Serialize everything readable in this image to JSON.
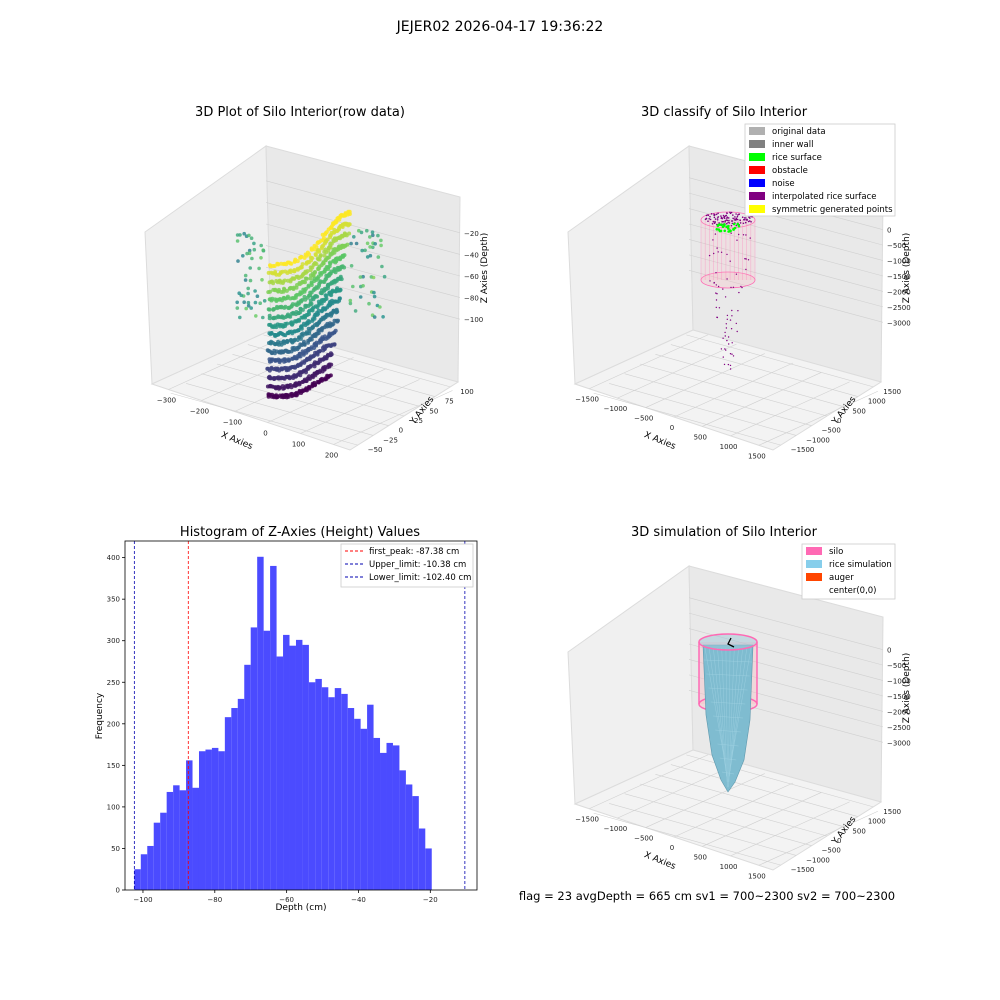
{
  "suptitle": "JEJER02 2026-04-17 19:36:22",
  "status_line": "flag = 23   avgDepth = 665 cm   sv1 = 700~2300   sv2 = 700~2300",
  "plot1": {
    "title": "3D Plot of Silo Interior(row data)",
    "xlabel": "X Axies",
    "ylabel": "Y Axies",
    "zlabel": "Z Axies (Depth)",
    "xticks": [
      "−300",
      "−200",
      "−100",
      "0",
      "100",
      "200"
    ],
    "yticks": [
      "−50",
      "−25",
      "0",
      "25",
      "50",
      "75",
      "100"
    ],
    "zticks": [
      "−100",
      "−80",
      "−60",
      "−40",
      "−20"
    ],
    "colormap": "viridis"
  },
  "plot2": {
    "title": "3D classify of Silo Interior",
    "xlabel": "X Axies",
    "ylabel": "Y Axies",
    "zlabel": "Z Axies (Depth)",
    "xticks": [
      "−1500",
      "−1000",
      "−500",
      "0",
      "500",
      "1000",
      "1500"
    ],
    "yticks": [
      "−1500",
      "−1000",
      "−500",
      "0",
      "500",
      "1000",
      "1500"
    ],
    "zticks": [
      "−3000",
      "−2500",
      "−2000",
      "−1500",
      "−1000",
      "−500",
      "0"
    ],
    "legend": [
      {
        "label": "original data",
        "color": "#b0b0b0"
      },
      {
        "label": "inner wall",
        "color": "#808080"
      },
      {
        "label": "rice surface",
        "color": "#00ff00"
      },
      {
        "label": "obstacle",
        "color": "#ff0000"
      },
      {
        "label": "noise",
        "color": "#0000ff"
      },
      {
        "label": "interpolated rice surface",
        "color": "#800080"
      },
      {
        "label": "symmetric generated points",
        "color": "#ffff00"
      }
    ]
  },
  "plot3": {
    "title": "Histogram of Z-Axies (Height) Values",
    "xlabel": "Depth (cm)",
    "ylabel": "Frequency",
    "xticks": [
      "−100",
      "−80",
      "−60",
      "−40",
      "−20"
    ],
    "yticks": [
      "0",
      "50",
      "100",
      "150",
      "200",
      "250",
      "300",
      "350",
      "400"
    ],
    "legend": [
      {
        "label": "first_peak: -87.38 cm",
        "color": "#ff0000"
      },
      {
        "label": "Upper_limit: -10.38 cm",
        "color": "#0000b0"
      },
      {
        "label": "Lower_limit: -102.40 cm",
        "color": "#0000b0"
      }
    ]
  },
  "plot4": {
    "title": "3D simulation of Silo Interior",
    "xlabel": "X Axies",
    "ylabel": "Y Axies",
    "zlabel": "Z Axies (Depth)",
    "xticks": [
      "−1500",
      "−1000",
      "−500",
      "0",
      "500",
      "1000",
      "1500"
    ],
    "yticks": [
      "−1500",
      "−1000",
      "−500",
      "0",
      "500",
      "1000",
      "1500"
    ],
    "zticks": [
      "−3000",
      "−2500",
      "−2000",
      "−1500",
      "−1000",
      "−500",
      "0"
    ],
    "legend": [
      {
        "label": "silo",
        "color": "#ff69b4"
      },
      {
        "label": "rice simulation",
        "color": "#87ceeb"
      },
      {
        "label": "auger",
        "color": "#ff4500"
      },
      {
        "label": "center(0,0)",
        "color": "#ffffff"
      }
    ]
  },
  "chart_data": [
    {
      "type": "scatter",
      "title": "3D Plot of Silo Interior(row data)",
      "note_series": "3D point cloud colored by depth (viridis)",
      "xlim": [
        -330,
        230
      ],
      "ylim": [
        -55,
        110
      ],
      "zlim": [
        -110,
        -10
      ]
    },
    {
      "type": "scatter",
      "title": "3D classify of Silo Interior",
      "xlim": [
        -1700,
        1700
      ],
      "ylim": [
        -1700,
        1700
      ],
      "zlim": [
        -3300,
        0
      ]
    },
    {
      "type": "bar",
      "title": "Histogram of Z-Axies (Height) Values",
      "xlabel": "Depth (cm)",
      "ylabel": "Frequency",
      "xlim": [
        -105,
        -7
      ],
      "ylim": [
        0,
        420
      ],
      "bin_start": -102.4,
      "bin_width": 1.8,
      "values": [
        25,
        43,
        53,
        81,
        93,
        118,
        126,
        120,
        156,
        123,
        167,
        169,
        171,
        167,
        208,
        219,
        230,
        271,
        316,
        401,
        312,
        390,
        281,
        307,
        294,
        301,
        295,
        250,
        254,
        244,
        232,
        243,
        236,
        219,
        206,
        194,
        223,
        183,
        165,
        177,
        174,
        144,
        127,
        113,
        74,
        50
      ],
      "lines": [
        {
          "name": "first_peak",
          "x": -87.38,
          "color": "#ff0000"
        },
        {
          "name": "Upper_limit",
          "x": -10.38,
          "color": "#0000b0"
        },
        {
          "name": "Lower_limit",
          "x": -102.4,
          "color": "#0000b0"
        }
      ]
    },
    {
      "type": "area",
      "title": "3D simulation of Silo Interior",
      "xlim": [
        -1700,
        1700
      ],
      "ylim": [
        -1700,
        1700
      ],
      "zlim": [
        -3300,
        0
      ]
    }
  ]
}
